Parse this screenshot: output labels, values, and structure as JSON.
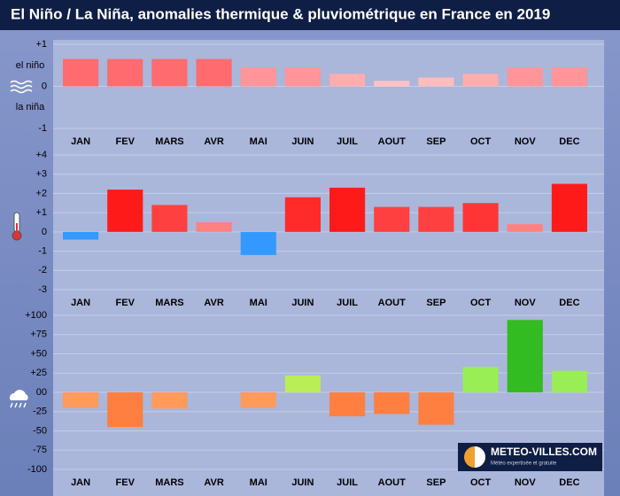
{
  "header": {
    "title": "El Niño / La Niña, anomalies thermique & pluviométrique en France en 2019"
  },
  "brand": {
    "name": "METEO-VILLES.COM",
    "tagline": "Météo expertisée et gratuite"
  },
  "chart_data": [
    {
      "type": "bar",
      "annotations": [
        "el niño",
        "la niña"
      ],
      "categories": [
        "JAN",
        "FEV",
        "MARS",
        "AVR",
        "MAI",
        "JUIN",
        "JUIL",
        "AOUT",
        "SEP",
        "OCT",
        "NOV",
        "DEC"
      ],
      "values": [
        0.65,
        0.65,
        0.65,
        0.65,
        0.45,
        0.45,
        0.3,
        0.13,
        0.21,
        0.3,
        0.45,
        0.45
      ],
      "colors": [
        "#ff6b6e",
        "#ff6b6e",
        "#ff6b6e",
        "#ff6b6e",
        "#ff9499",
        "#ff9499",
        "#ffacae",
        "#ffc2c2",
        "#ffbcbc",
        "#ffacae",
        "#ff9499",
        "#ff9499"
      ],
      "ylim": [
        -1,
        1
      ],
      "yticks": [
        {
          "value": 1,
          "label": "+1"
        },
        0,
        -1
      ],
      "grid": true
    },
    {
      "type": "bar",
      "categories": [
        "JAN",
        "FEV",
        "MARS",
        "AVR",
        "MAI",
        "JUIN",
        "JUIL",
        "AOUT",
        "SEP",
        "OCT",
        "NOV",
        "DEC"
      ],
      "values": [
        -0.4,
        2.2,
        1.4,
        0.5,
        -1.2,
        1.8,
        2.3,
        1.3,
        1.3,
        1.5,
        0.4,
        2.5
      ],
      "colors": [
        "#3399ff",
        "#ff1a1a",
        "#ff4040",
        "#ff8080",
        "#3399ff",
        "#ff2a2a",
        "#ff1a1a",
        "#ff4040",
        "#ff4040",
        "#ff3535",
        "#ff8080",
        "#ff1a1a"
      ],
      "ylim": [
        -3,
        4
      ],
      "yticks": [
        {
          "value": 4,
          "label": "+4"
        },
        {
          "value": 3,
          "label": "+3"
        },
        {
          "value": 2,
          "label": "+2"
        },
        {
          "value": 1,
          "label": "+1"
        },
        0,
        -1,
        -2,
        -3
      ],
      "grid": true
    },
    {
      "type": "bar",
      "categories": [
        "JAN",
        "FEV",
        "MARS",
        "AVR",
        "MAI",
        "JUIN",
        "JUIL",
        "AOUT",
        "SEP",
        "OCT",
        "NOV",
        "DEC"
      ],
      "values": [
        -20,
        -45,
        -21,
        0,
        -20,
        22,
        -31,
        -28,
        -42,
        33,
        94,
        28
      ],
      "colors": [
        "#ff9a5a",
        "#ff7f40",
        "#ff9a5a",
        "#ff9a5a",
        "#ff9a5a",
        "#bbee55",
        "#ff7f40",
        "#ff7f40",
        "#ff7f40",
        "#99ee55",
        "#33bb22",
        "#99ee55"
      ],
      "ylim": [
        -100,
        100
      ],
      "yticks": [
        {
          "value": 100,
          "label": "+100"
        },
        {
          "value": 75,
          "label": "+75"
        },
        {
          "value": 50,
          "label": "+50"
        },
        {
          "value": 25,
          "label": "+25"
        },
        {
          "value": 0,
          "label": "00"
        },
        -25,
        -50,
        -75,
        -100
      ],
      "grid": true
    }
  ]
}
